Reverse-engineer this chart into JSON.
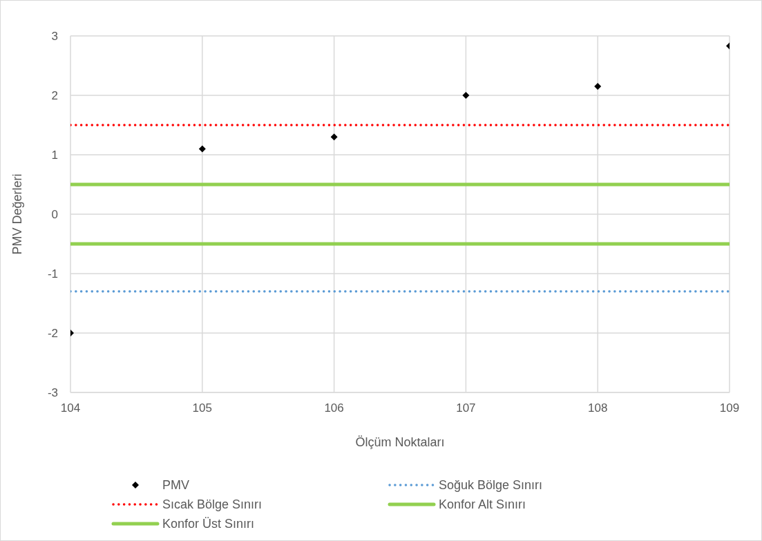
{
  "chart_data": {
    "type": "scatter",
    "xlabel": "Ölçüm Noktaları",
    "ylabel": "PMV Değerleri",
    "xlim": [
      104,
      109
    ],
    "xticks": [
      104,
      105,
      106,
      107,
      108,
      109
    ],
    "ylim": [
      -3,
      3
    ],
    "yticks": [
      -3,
      -2,
      -1,
      0,
      1,
      2,
      3
    ],
    "grid": true,
    "legend": "bottom",
    "series": [
      {
        "name": "PMV",
        "color": "#000000",
        "marker": "diamond",
        "x": [
          104,
          105,
          106,
          107,
          108,
          109
        ],
        "values": [
          -2,
          1.1,
          1.3,
          2.0,
          2.15,
          2.83
        ]
      },
      {
        "name": "Soğuk Bölge Sınırı",
        "type": "line",
        "color": "#5b9bd5",
        "line_style": "dotted",
        "x": [
          104,
          109
        ],
        "values": [
          -1.3,
          -1.3
        ]
      },
      {
        "name": "Sıcak Bölge Sınırı",
        "type": "line",
        "color": "#ff0000",
        "line_style": "dotted",
        "x": [
          104,
          109
        ],
        "values": [
          1.5,
          1.5
        ]
      },
      {
        "name": "Konfor Alt Sınırı",
        "type": "line",
        "color": "#92d050",
        "line_style": "solid",
        "x": [
          104,
          109
        ],
        "values": [
          -0.5,
          -0.5
        ]
      },
      {
        "name": "Konfor Üst Sınırı",
        "type": "line",
        "color": "#92d050",
        "line_style": "solid",
        "x": [
          104,
          109
        ],
        "values": [
          0.5,
          0.5
        ]
      }
    ]
  }
}
